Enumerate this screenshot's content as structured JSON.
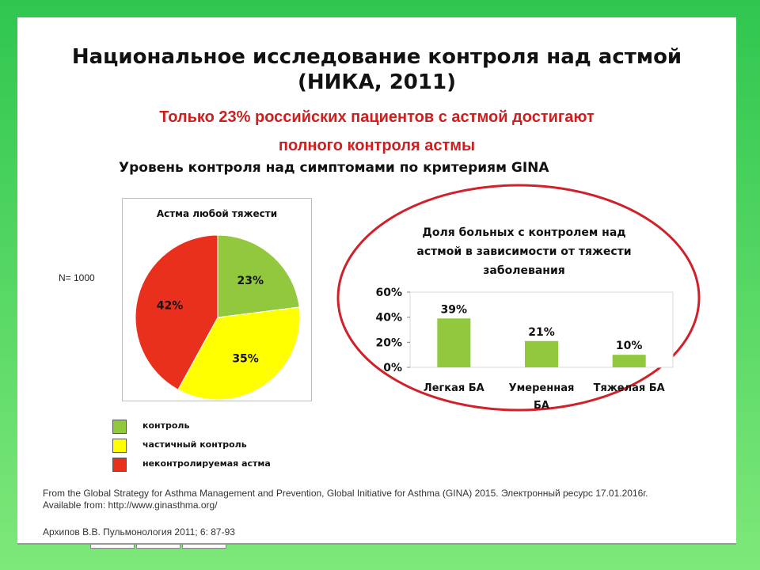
{
  "slide": {
    "title_line1": "Национальное исследование контроля над астмой",
    "title_line2": "(НИКА, 2011)",
    "subtitle_line1": "Только 23% российских пациентов с астмой достигают",
    "subtitle_line2": "полного контроля астмы",
    "gina_heading": "Уровень контроля над симптомами по критериям GINA",
    "n_label": "N= 1000",
    "footer_line1": "From the Global Strategy for Asthma Management and Prevention,  Global Initiative for Asthma (GINA) 2015. Электронный  ресурс 17.01.2016г.",
    "footer_line2": "Available from: http://www.ginasthma.org/",
    "footer_citation": "Архипов В.В. Пульмонология 2011; 6: 87-93"
  },
  "colors": {
    "control": "#92c83e",
    "partial": "#ffff00",
    "uncontrolled": "#e8301c",
    "ellipse": "#d0202a",
    "subtitle": "#cc1f1f"
  },
  "legend": [
    {
      "label": "контроль",
      "color_key": "control"
    },
    {
      "label": "частичный контроль",
      "color_key": "partial"
    },
    {
      "label": "неконтролируемая астма",
      "color_key": "uncontrolled"
    }
  ],
  "chart_data": [
    {
      "type": "pie",
      "title": "Астма любой тяжести",
      "slices": [
        {
          "label": "23%",
          "value": 23,
          "color_key": "control"
        },
        {
          "label": "35%",
          "value": 35,
          "color_key": "partial"
        },
        {
          "label": "42%",
          "value": 42,
          "color_key": "uncontrolled"
        }
      ]
    },
    {
      "type": "bar",
      "title_lines": [
        "Доля больных с контролем над",
        "астмой в зависимости от тяжести",
        "заболевания"
      ],
      "categories": [
        [
          "Легкая БА"
        ],
        [
          "Умеренная",
          "БА"
        ],
        [
          "Тяжелая БА"
        ]
      ],
      "values": [
        39,
        21,
        10
      ],
      "value_labels": [
        "39%",
        "21%",
        "10%"
      ],
      "yticks": [
        0,
        20,
        40,
        60
      ],
      "ytick_labels": [
        "0%",
        "20%",
        "40%",
        "60%"
      ],
      "ylim": [
        0,
        60
      ],
      "grid": false
    }
  ]
}
